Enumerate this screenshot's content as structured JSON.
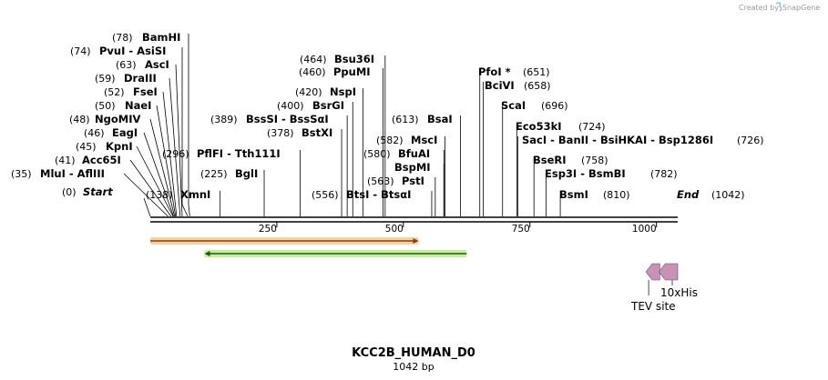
{
  "credit": {
    "text": "Created by",
    "brand": "SnapGene"
  },
  "sequence": {
    "name": "KCC2B_HUMAN_D0",
    "length_label": "1042 bp",
    "length": 1042
  },
  "axis": {
    "ticks": [
      250,
      500,
      750,
      1000
    ]
  },
  "sites": [
    {
      "name": "Start",
      "pos": 0,
      "pos_label": "(0)",
      "italic": true
    },
    {
      "name": "MluI - AflIII",
      "pos": 35,
      "pos_label": "(35)"
    },
    {
      "name": "Acc65I",
      "pos": 41,
      "pos_label": "(41)"
    },
    {
      "name": "KpnI",
      "pos": 45,
      "pos_label": "(45)"
    },
    {
      "name": "EagI",
      "pos": 46,
      "pos_label": "(46)"
    },
    {
      "name": "NgoMIV",
      "pos": 48,
      "pos_label": "(48)"
    },
    {
      "name": "NaeI",
      "pos": 50,
      "pos_label": "(50)"
    },
    {
      "name": "FseI",
      "pos": 52,
      "pos_label": "(52)"
    },
    {
      "name": "DraIII",
      "pos": 59,
      "pos_label": "(59)"
    },
    {
      "name": "AscI",
      "pos": 63,
      "pos_label": "(63)"
    },
    {
      "name": "PvuI - AsiSI",
      "pos": 74,
      "pos_label": "(74)"
    },
    {
      "name": "BamHI",
      "pos": 78,
      "pos_label": "(78)"
    },
    {
      "name": "XmnI",
      "pos": 138,
      "pos_label": "(138)"
    },
    {
      "name": "BglI",
      "pos": 225,
      "pos_label": "(225)"
    },
    {
      "name": "PflFI - Tth111I",
      "pos": 296,
      "pos_label": "(296)"
    },
    {
      "name": "BstXI",
      "pos": 378,
      "pos_label": "(378)"
    },
    {
      "name": "BssSI - BssSαI",
      "pos": 389,
      "pos_label": "(389)"
    },
    {
      "name": "BsrGI",
      "pos": 400,
      "pos_label": "(400)"
    },
    {
      "name": "NspI",
      "pos": 420,
      "pos_label": "(420)"
    },
    {
      "name": "PpuMI",
      "pos": 460,
      "pos_label": "(460)"
    },
    {
      "name": "Bsu36I",
      "pos": 464,
      "pos_label": "(464)"
    },
    {
      "name": "BtsI - BtsαI",
      "pos": 556,
      "pos_label": "(556)"
    },
    {
      "name": "PstI",
      "pos": 563,
      "pos_label": "(563)"
    },
    {
      "name": "BspMI",
      "pos": 580,
      "pos_label": ""
    },
    {
      "name": "BfuAI",
      "pos": 580,
      "pos_label": "(580)"
    },
    {
      "name": "MscI",
      "pos": 582,
      "pos_label": "(582)"
    },
    {
      "name": "BsaI",
      "pos": 613,
      "pos_label": "(613)"
    },
    {
      "name": "PfoI *",
      "pos": 651,
      "pos_label": "(651)"
    },
    {
      "name": "BciVI",
      "pos": 658,
      "pos_label": "(658)"
    },
    {
      "name": "ScaI",
      "pos": 696,
      "pos_label": "(696)"
    },
    {
      "name": "Eco53kI",
      "pos": 724,
      "pos_label": "(724)"
    },
    {
      "name": "SacI - BanII - BsiHKAI - Bsp1286I",
      "pos": 726,
      "pos_label": "(726)"
    },
    {
      "name": "BseRI",
      "pos": 758,
      "pos_label": "(758)"
    },
    {
      "name": "Esp3I - BsmBI",
      "pos": 782,
      "pos_label": "(782)"
    },
    {
      "name": "BsmI",
      "pos": 810,
      "pos_label": "(810)"
    },
    {
      "name": "End",
      "pos": 1042,
      "pos_label": "(1042)",
      "italic": true
    }
  ],
  "features": [
    {
      "name": "orange-arrow",
      "label": "",
      "start": 0,
      "end": 530,
      "direction": "forward",
      "color": "#f0a030"
    },
    {
      "name": "green-arrow",
      "label": "",
      "start": 107,
      "end": 625,
      "direction": "reverse",
      "color": "#7ccf3c"
    },
    {
      "name": "tev-site",
      "label": "TEV site",
      "start": 990,
      "end": 1012,
      "direction": "reverse",
      "color": "#c693b4"
    },
    {
      "name": "his-tag",
      "label": "10xHis",
      "start": 1012,
      "end": 1042,
      "direction": "reverse",
      "color": "#c693b4"
    }
  ]
}
